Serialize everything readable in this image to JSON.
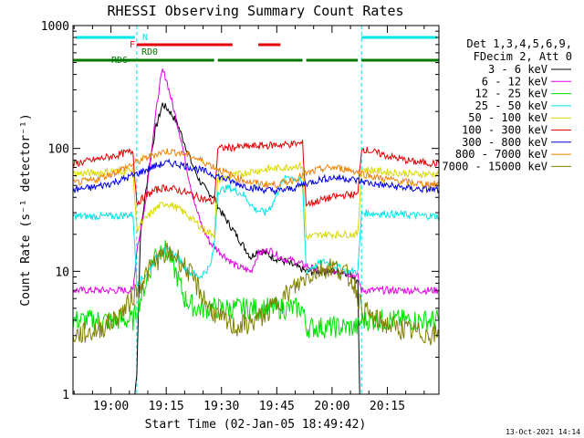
{
  "chart_data": {
    "type": "line",
    "title": "RHESSI Observing Summary Count Rates",
    "xlabel": "Start Time (02-Jan-05 18:49:42)",
    "ylabel": "Count Rate (s⁻¹ detector⁻¹)",
    "yscale": "log",
    "xlim": [
      "18:49:42",
      "20:29:00"
    ],
    "ylim": [
      1,
      1000
    ],
    "x_tick_labels": [
      "19:00",
      "19:15",
      "19:30",
      "19:45",
      "20:00",
      "20:15"
    ],
    "y_tick_labels": [
      "1",
      "10",
      "100",
      "1000"
    ],
    "footer_timestamp": "13-Oct-2021 14:14",
    "legend": {
      "placement": "right",
      "header": [
        "Det 1,3,4,5,6,9,",
        "FDecim 2, Att 0"
      ]
    },
    "night_intervals": [
      {
        "start": "18:49:42",
        "end": "19:07:00"
      },
      {
        "start": "20:08:00",
        "end": "20:29:00"
      }
    ],
    "state_bars": [
      {
        "label": "N",
        "color": "#00e5e5",
        "segments": [
          [
            "18:50:30",
            "19:06:30"
          ],
          [
            "20:08:00",
            "20:28:30"
          ]
        ]
      },
      {
        "label": "F",
        "color": "#e00000",
        "segments": [
          [
            "19:07:00",
            "19:33:00"
          ],
          [
            "19:40:00",
            "19:46:00"
          ]
        ]
      },
      {
        "label": "RD0",
        "color": "#007800",
        "segments": []
      },
      {
        "label": "RD6",
        "color": "#007800",
        "segments": [
          [
            "18:49:42",
            "19:07:00"
          ],
          [
            "19:07:00",
            "19:28:00"
          ],
          [
            "19:29:00",
            "19:52:00"
          ],
          [
            "19:53:00",
            "20:07:00"
          ],
          [
            "20:08:00",
            "20:29:00"
          ]
        ]
      }
    ],
    "series": [
      {
        "name": "3 - 6 keV",
        "color": "#000000",
        "points": [
          [
            "19:06:30",
            1
          ],
          [
            "19:07:00",
            1.5
          ],
          [
            "19:08:00",
            20
          ],
          [
            "19:10:00",
            60
          ],
          [
            "19:12:00",
            140
          ],
          [
            "19:14:00",
            230
          ],
          [
            "19:16:00",
            200
          ],
          [
            "19:18:00",
            160
          ],
          [
            "19:20:00",
            110
          ],
          [
            "19:22:00",
            75
          ],
          [
            "19:24:00",
            55
          ],
          [
            "19:26:00",
            45
          ],
          [
            "19:28:00",
            40
          ],
          [
            "19:30:00",
            30
          ],
          [
            "19:33:00",
            22
          ],
          [
            "19:36:00",
            16
          ],
          [
            "19:38:00",
            13
          ],
          [
            "19:40:00",
            15
          ],
          [
            "19:42:00",
            14
          ],
          [
            "19:44:00",
            13
          ],
          [
            "19:47:00",
            12
          ],
          [
            "19:50:00",
            11
          ],
          [
            "19:53:00",
            10
          ],
          [
            "19:56:00",
            10
          ],
          [
            "20:00:00",
            10
          ],
          [
            "20:03:00",
            10
          ],
          [
            "20:06:00",
            9
          ],
          [
            "20:07:00",
            8
          ],
          [
            "20:07:30",
            1
          ]
        ]
      },
      {
        "name": "6 - 12 keV",
        "color": "#e000e0",
        "points": [
          [
            "18:49:42",
            7
          ],
          [
            "19:00:00",
            7
          ],
          [
            "19:06:00",
            7
          ],
          [
            "19:07:00",
            15
          ],
          [
            "19:09:00",
            30
          ],
          [
            "19:11:00",
            100
          ],
          [
            "19:13:00",
            300
          ],
          [
            "19:14:00",
            430
          ],
          [
            "19:15:00",
            370
          ],
          [
            "19:17:00",
            210
          ],
          [
            "19:19:00",
            120
          ],
          [
            "19:21:00",
            60
          ],
          [
            "19:23:00",
            33
          ],
          [
            "19:25:00",
            22
          ],
          [
            "19:27:00",
            17
          ],
          [
            "19:30:00",
            14
          ],
          [
            "19:34:00",
            11
          ],
          [
            "19:38:00",
            10
          ],
          [
            "19:40:00",
            14
          ],
          [
            "19:43:00",
            15
          ],
          [
            "19:46:00",
            13
          ],
          [
            "19:50:00",
            12
          ],
          [
            "19:53:00",
            11
          ],
          [
            "19:57:00",
            10
          ],
          [
            "20:00:00",
            10
          ],
          [
            "20:03:00",
            10
          ],
          [
            "20:07:00",
            9
          ],
          [
            "20:08:00",
            7
          ],
          [
            "20:29:00",
            7
          ]
        ]
      },
      {
        "name": "12 - 25 keV",
        "color": "#00e000",
        "points": [
          [
            "18:49:42",
            4
          ],
          [
            "19:00:00",
            4
          ],
          [
            "19:06:00",
            4
          ],
          [
            "19:08:00",
            6
          ],
          [
            "19:10:00",
            9
          ],
          [
            "19:12:00",
            14
          ],
          [
            "19:14:00",
            16
          ],
          [
            "19:16:00",
            13
          ],
          [
            "19:18:00",
            9
          ],
          [
            "19:20:00",
            6
          ],
          [
            "19:23:00",
            5
          ],
          [
            "19:26:00",
            5
          ],
          [
            "19:30:00",
            5
          ],
          [
            "19:35:00",
            5
          ],
          [
            "19:40:00",
            5
          ],
          [
            "19:45:00",
            5
          ],
          [
            "19:50:00",
            5
          ],
          [
            "19:52:00",
            5
          ],
          [
            "19:53:00",
            3.5
          ],
          [
            "20:00:00",
            3.5
          ],
          [
            "20:07:00",
            3.5
          ],
          [
            "20:08:00",
            4
          ],
          [
            "20:29:00",
            4
          ]
        ]
      },
      {
        "name": "25 - 50 keV",
        "color": "#00e5e5",
        "points": [
          [
            "18:49:42",
            28
          ],
          [
            "19:00:00",
            28
          ],
          [
            "19:06:00",
            29
          ],
          [
            "19:07:00",
            8
          ],
          [
            "19:09:00",
            9
          ],
          [
            "19:11:00",
            11
          ],
          [
            "19:13:00",
            14
          ],
          [
            "19:15:00",
            15
          ],
          [
            "19:17:00",
            14
          ],
          [
            "19:19:00",
            12
          ],
          [
            "19:21:00",
            10
          ],
          [
            "19:24:00",
            9
          ],
          [
            "19:27:00",
            11
          ],
          [
            "19:28:00",
            16
          ],
          [
            "19:29:00",
            45
          ],
          [
            "19:32:00",
            48
          ],
          [
            "19:36:00",
            42
          ],
          [
            "19:39:00",
            32
          ],
          [
            "19:42:00",
            30
          ],
          [
            "19:44:00",
            36
          ],
          [
            "19:46:00",
            50
          ],
          [
            "19:48:00",
            60
          ],
          [
            "19:51:00",
            55
          ],
          [
            "19:52:00",
            50
          ],
          [
            "19:53:00",
            10
          ],
          [
            "19:55:00",
            11
          ],
          [
            "19:58:00",
            12
          ],
          [
            "20:01:00",
            11
          ],
          [
            "20:04:00",
            10
          ],
          [
            "20:07:00",
            10
          ],
          [
            "20:08:00",
            30
          ],
          [
            "20:29:00",
            28
          ]
        ]
      },
      {
        "name": "50 - 100 keV",
        "color": "#d8d800",
        "points": [
          [
            "18:49:42",
            62
          ],
          [
            "18:58:00",
            64
          ],
          [
            "19:04:00",
            66
          ],
          [
            "19:06:00",
            66
          ],
          [
            "19:07:00",
            22
          ],
          [
            "19:09:00",
            26
          ],
          [
            "19:11:00",
            30
          ],
          [
            "19:13:00",
            34
          ],
          [
            "19:15:00",
            36
          ],
          [
            "19:17:00",
            34
          ],
          [
            "19:20:00",
            30
          ],
          [
            "19:23:00",
            25
          ],
          [
            "19:26:00",
            21
          ],
          [
            "19:28:00",
            20
          ],
          [
            "19:29:00",
            55
          ],
          [
            "19:33:00",
            60
          ],
          [
            "19:38:00",
            65
          ],
          [
            "19:43:00",
            68
          ],
          [
            "19:47:00",
            70
          ],
          [
            "19:50:00",
            72
          ],
          [
            "19:52:00",
            72
          ],
          [
            "19:53:00",
            19
          ],
          [
            "19:58:00",
            20
          ],
          [
            "20:03:00",
            20
          ],
          [
            "20:07:00",
            20
          ],
          [
            "20:08:00",
            68
          ],
          [
            "20:15:00",
            64
          ],
          [
            "20:22:00",
            62
          ],
          [
            "20:29:00",
            62
          ]
        ]
      },
      {
        "name": "100 - 300 keV",
        "color": "#e00000",
        "points": [
          [
            "18:49:42",
            75
          ],
          [
            "18:55:00",
            80
          ],
          [
            "19:00:00",
            86
          ],
          [
            "19:04:00",
            92
          ],
          [
            "19:06:00",
            95
          ],
          [
            "19:07:00",
            36
          ],
          [
            "19:09:00",
            40
          ],
          [
            "19:11:00",
            44
          ],
          [
            "19:13:00",
            47
          ],
          [
            "19:15:00",
            48
          ],
          [
            "19:18:00",
            46
          ],
          [
            "19:21:00",
            43
          ],
          [
            "19:24:00",
            40
          ],
          [
            "19:27:00",
            37
          ],
          [
            "19:28:00",
            36
          ],
          [
            "19:29:00",
            100
          ],
          [
            "19:33:00",
            102
          ],
          [
            "19:38:00",
            104
          ],
          [
            "19:43:00",
            106
          ],
          [
            "19:48:00",
            108
          ],
          [
            "19:52:00",
            110
          ],
          [
            "19:53:00",
            35
          ],
          [
            "19:57:00",
            38
          ],
          [
            "20:00:00",
            40
          ],
          [
            "20:04:00",
            42
          ],
          [
            "20:07:00",
            42
          ],
          [
            "20:08:00",
            100
          ],
          [
            "20:12:00",
            92
          ],
          [
            "20:17:00",
            84
          ],
          [
            "20:22:00",
            78
          ],
          [
            "20:29:00",
            75
          ]
        ]
      },
      {
        "name": "300 - 800 keV",
        "color": "#0000e0",
        "points": [
          [
            "18:49:42",
            46
          ],
          [
            "18:55:00",
            48
          ],
          [
            "19:00:00",
            52
          ],
          [
            "19:04:00",
            57
          ],
          [
            "19:08:00",
            64
          ],
          [
            "19:12:00",
            72
          ],
          [
            "19:15:00",
            76
          ],
          [
            "19:18:00",
            75
          ],
          [
            "19:22:00",
            70
          ],
          [
            "19:26:00",
            64
          ],
          [
            "19:30:00",
            58
          ],
          [
            "19:34:00",
            52
          ],
          [
            "19:38:00",
            48
          ],
          [
            "19:42:00",
            46
          ],
          [
            "19:45:00",
            45
          ],
          [
            "19:49:00",
            47
          ],
          [
            "19:53:00",
            52
          ],
          [
            "19:57:00",
            56
          ],
          [
            "20:00:00",
            58
          ],
          [
            "20:04:00",
            57
          ],
          [
            "20:08:00",
            54
          ],
          [
            "20:12:00",
            51
          ],
          [
            "20:17:00",
            49
          ],
          [
            "20:22:00",
            47
          ],
          [
            "20:29:00",
            46
          ]
        ]
      },
      {
        "name": "800 - 7000 keV",
        "color": "#f08000",
        "points": [
          [
            "18:49:42",
            52
          ],
          [
            "18:55:00",
            55
          ],
          [
            "19:00:00",
            62
          ],
          [
            "19:04:00",
            70
          ],
          [
            "19:08:00",
            80
          ],
          [
            "19:12:00",
            90
          ],
          [
            "19:15:00",
            95
          ],
          [
            "19:18:00",
            93
          ],
          [
            "19:22:00",
            86
          ],
          [
            "19:26:00",
            76
          ],
          [
            "19:30:00",
            66
          ],
          [
            "19:34:00",
            58
          ],
          [
            "19:38:00",
            53
          ],
          [
            "19:42:00",
            51
          ],
          [
            "19:45:00",
            51
          ],
          [
            "19:49:00",
            55
          ],
          [
            "19:53:00",
            62
          ],
          [
            "19:57:00",
            68
          ],
          [
            "20:00:00",
            70
          ],
          [
            "20:04:00",
            68
          ],
          [
            "20:08:00",
            63
          ],
          [
            "20:12:00",
            58
          ],
          [
            "20:17:00",
            55
          ],
          [
            "20:22:00",
            52
          ],
          [
            "20:29:00",
            51
          ]
        ]
      },
      {
        "name": "7000 - 15000 keV",
        "color": "#808000",
        "points": [
          [
            "18:49:42",
            3
          ],
          [
            "18:55:00",
            3.2
          ],
          [
            "19:00:00",
            3.8
          ],
          [
            "19:04:00",
            5
          ],
          [
            "19:08:00",
            8
          ],
          [
            "19:12:00",
            12
          ],
          [
            "19:15:00",
            14
          ],
          [
            "19:18:00",
            13
          ],
          [
            "19:21:00",
            10
          ],
          [
            "19:24:00",
            7
          ],
          [
            "19:27:00",
            5
          ],
          [
            "19:30:00",
            4
          ],
          [
            "19:34:00",
            3.5
          ],
          [
            "19:38:00",
            3.8
          ],
          [
            "19:42:00",
            4.5
          ],
          [
            "19:45:00",
            5.5
          ],
          [
            "19:49:00",
            7
          ],
          [
            "19:53:00",
            9
          ],
          [
            "19:57:00",
            10.5
          ],
          [
            "20:00:00",
            11
          ],
          [
            "20:03:00",
            10
          ],
          [
            "20:06:00",
            8
          ],
          [
            "20:08:00",
            5
          ],
          [
            "20:12:00",
            4
          ],
          [
            "20:17:00",
            3.5
          ],
          [
            "20:22:00",
            3.2
          ],
          [
            "20:29:00",
            3
          ]
        ]
      }
    ]
  }
}
